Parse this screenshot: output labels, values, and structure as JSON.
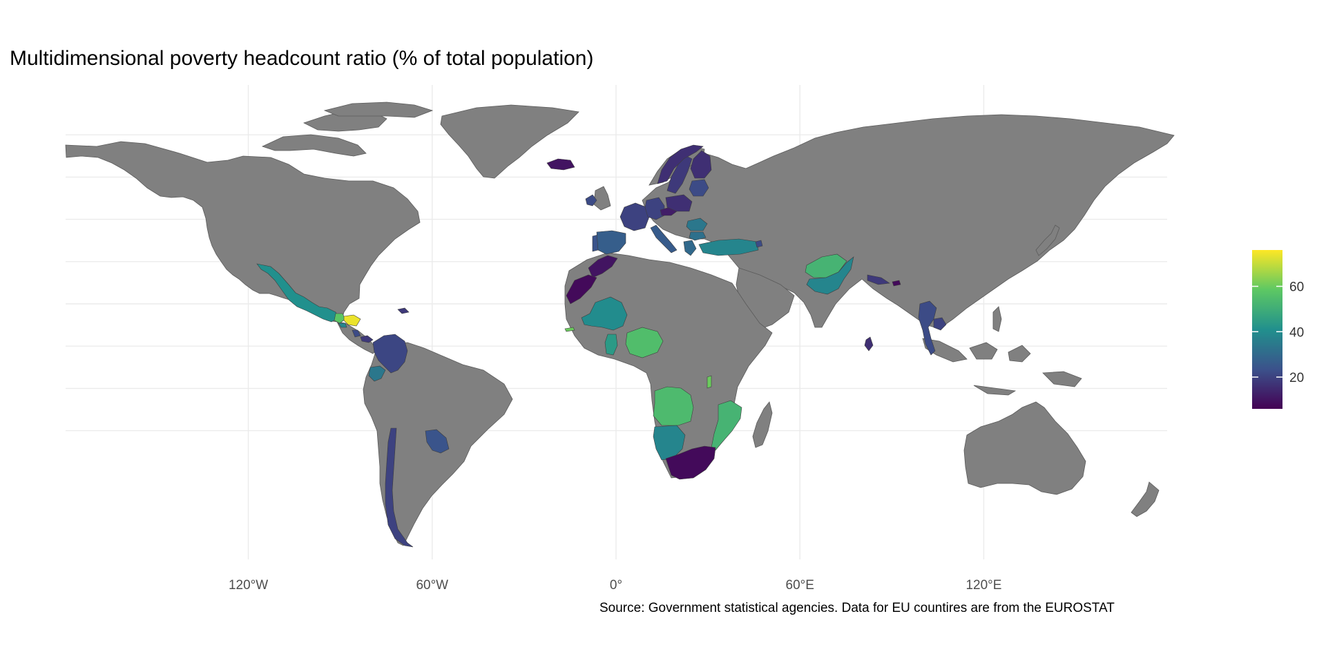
{
  "title": "Multidimensional poverty headcount ratio (% of total population)",
  "caption": "Source: Government statistical agencies. Data for EU countires are from the EUROSTAT",
  "colors": {
    "background": "#ffffff",
    "no_data": "#808080",
    "grid": "#ebebeb",
    "scale": [
      "#440154",
      "#3b528b",
      "#21908d",
      "#5dc863",
      "#fde725"
    ]
  },
  "map": {
    "projection": "equirectangular",
    "x_axis": {
      "ticks": [
        {
          "lon": -120,
          "label": "120°W"
        },
        {
          "lon": -60,
          "label": "60°W"
        },
        {
          "lon": 0,
          "label": "0°"
        },
        {
          "lon": 60,
          "label": "60°E"
        },
        {
          "lon": 120,
          "label": "120°E"
        }
      ]
    },
    "y_gridlines_lat": [
      80,
      60,
      40,
      20,
      0,
      -20,
      -40,
      -60
    ]
  },
  "legend": {
    "type": "continuous",
    "range": [
      6,
      76
    ],
    "ticks": [
      {
        "value": 20,
        "label": "20"
      },
      {
        "value": 40,
        "label": "40"
      },
      {
        "value": 60,
        "label": "60"
      }
    ]
  },
  "chart_data": {
    "type": "heatmap",
    "subtype": "choropleth",
    "title": "Multidimensional poverty headcount ratio (% of total population)",
    "value_range": [
      6,
      76
    ],
    "regions": [
      {
        "name": "Mexico",
        "value": 41
      },
      {
        "name": "Guatemala",
        "value": 58
      },
      {
        "name": "Honduras",
        "value": 74
      },
      {
        "name": "El Salvador",
        "value": 38
      },
      {
        "name": "Costa Rica",
        "value": 22
      },
      {
        "name": "Panama",
        "value": 18
      },
      {
        "name": "Dominican Republic",
        "value": 18
      },
      {
        "name": "Colombia",
        "value": 21
      },
      {
        "name": "Ecuador",
        "value": 34
      },
      {
        "name": "Chile",
        "value": 20
      },
      {
        "name": "Paraguay",
        "value": 24
      },
      {
        "name": "Iceland",
        "value": 10
      },
      {
        "name": "Ireland",
        "value": 22
      },
      {
        "name": "Portugal",
        "value": 24
      },
      {
        "name": "Spain",
        "value": 27
      },
      {
        "name": "France",
        "value": 20
      },
      {
        "name": "Germany",
        "value": 20
      },
      {
        "name": "Czechia",
        "value": 12
      },
      {
        "name": "Poland",
        "value": 16
      },
      {
        "name": "Italy",
        "value": 26
      },
      {
        "name": "Romania",
        "value": 34
      },
      {
        "name": "Bulgaria",
        "value": 32
      },
      {
        "name": "Greece",
        "value": 30
      },
      {
        "name": "Sweden",
        "value": 18
      },
      {
        "name": "Norway",
        "value": 16
      },
      {
        "name": "Finland",
        "value": 16
      },
      {
        "name": "Baltic states",
        "value": 22
      },
      {
        "name": "Turkey",
        "value": 38
      },
      {
        "name": "Armenia",
        "value": 22
      },
      {
        "name": "Afghanistan",
        "value": 52
      },
      {
        "name": "Pakistan",
        "value": 38
      },
      {
        "name": "Nepal",
        "value": 18
      },
      {
        "name": "Bhutan",
        "value": 8
      },
      {
        "name": "Sri Lanka",
        "value": 16
      },
      {
        "name": "Thailand",
        "value": 22
      },
      {
        "name": "Cambodia",
        "value": 20
      },
      {
        "name": "Morocco",
        "value": 10
      },
      {
        "name": "Western Sahara",
        "value": 8
      },
      {
        "name": "Gambia",
        "value": 60
      },
      {
        "name": "Mali",
        "value": 40
      },
      {
        "name": "Ghana",
        "value": 44
      },
      {
        "name": "Nigeria",
        "value": 55
      },
      {
        "name": "Malawi",
        "value": 60
      },
      {
        "name": "Angola",
        "value": 54
      },
      {
        "name": "Namibia",
        "value": 38
      },
      {
        "name": "Mozambique",
        "value": 52
      },
      {
        "name": "South Africa",
        "value": 8
      }
    ]
  }
}
